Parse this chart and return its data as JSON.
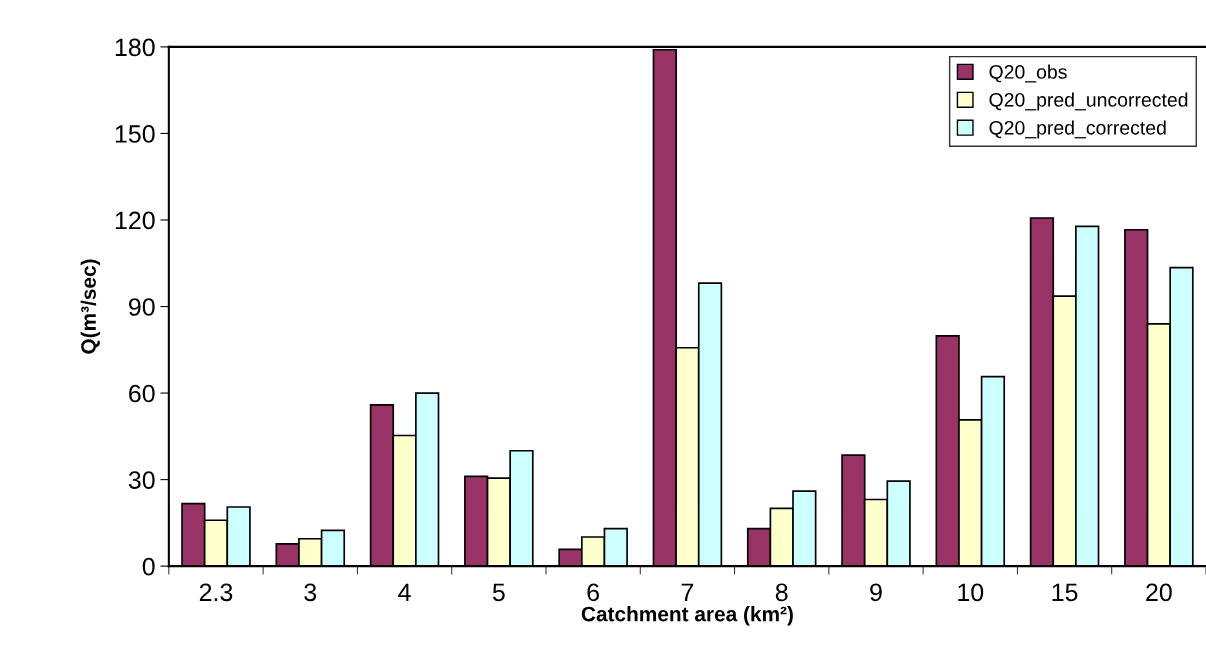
{
  "chart_data": {
    "type": "bar",
    "xlabel": "Catchment area (km²)",
    "ylabel": "Q(m³/sec)",
    "categories": [
      "2.3",
      "3",
      "4",
      "5",
      "6",
      "7",
      "8",
      "9",
      "10",
      "15",
      "20"
    ],
    "series": [
      {
        "name": "Q20_obs",
        "color": "#993366",
        "values": [
          21.7,
          7.7,
          55.9,
          31.1,
          5.8,
          179,
          13,
          38.5,
          79.8,
          120.7,
          116.6
        ]
      },
      {
        "name": "Q20_pred_uncorrected",
        "color": "#ffffcc",
        "values": [
          15.9,
          9.5,
          45.3,
          30.5,
          10.1,
          75.7,
          20,
          23.1,
          50.7,
          93.6,
          84
        ]
      },
      {
        "name": "Q20_pred_corrected",
        "color": "#ccffff",
        "values": [
          20.5,
          12.4,
          60.0,
          40.0,
          13,
          98.1,
          26,
          29.5,
          65.7,
          117.8,
          103.5
        ]
      }
    ],
    "ylim": [
      0,
      180
    ],
    "yticks": [
      0,
      30,
      60,
      90,
      120,
      150,
      180
    ],
    "grid": false,
    "legend": "top right"
  }
}
